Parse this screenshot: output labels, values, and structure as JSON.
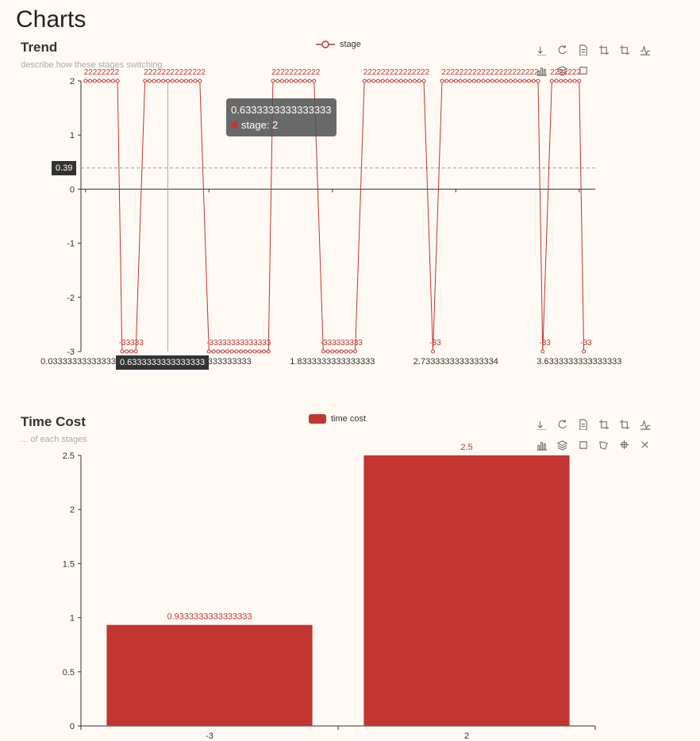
{
  "page": {
    "title": "Charts"
  },
  "colors": {
    "accent": "#c23531",
    "background": "#fff9f4"
  },
  "toolbox_icons": [
    "download-icon",
    "refresh-icon",
    "data-view-icon",
    "zoom-icon",
    "zoom-reset-icon",
    "line-chart-icon",
    "bar-chart-icon",
    "stack-icon",
    "rect-select-icon",
    "polygon-select-icon",
    "keep-select-icon",
    "clear-select-icon"
  ],
  "tooltip": {
    "title": "0.6333333333333333",
    "series_line": "stage: 2",
    "y_pointer": "0.39",
    "x_pointer": "0.6333333333333333"
  },
  "chart_data": [
    {
      "type": "line",
      "title": "Trend",
      "subtitle": "describe how these stages switching",
      "legend": [
        "stage"
      ],
      "legend_position": "top-center",
      "ylim": [
        -3,
        2
      ],
      "y_ticks": [
        "2",
        "1",
        "0",
        "-1",
        "-2",
        "-3"
      ],
      "x_tick_labels": [
        "0.03333333333333333",
        "0.9333333333333333",
        "1.8333333333333333",
        "2.7333333333333334",
        "3.6333333333333333"
      ],
      "series": [
        {
          "name": "stage",
          "segments": [
            {
              "x": [
                0.0333,
                0.2667
              ],
              "y": 2
            },
            {
              "x": [
                0.3,
                0.4333
              ],
              "y": -3
            },
            {
              "x": [
                0.4667,
                0.9
              ],
              "y": 2
            },
            {
              "x": [
                0.9333,
                1.3667
              ],
              "y": -3
            },
            {
              "x": [
                1.4,
                1.7333
              ],
              "y": 2
            },
            {
              "x": [
                1.7667,
                2.0333
              ],
              "y": -3
            },
            {
              "x": [
                2.0667,
                2.5333
              ],
              "y": 2
            },
            {
              "x": [
                2.5667,
                2.6
              ],
              "y": -3
            },
            {
              "x": [
                2.6333,
                3.3333
              ],
              "y": 2
            },
            {
              "x": [
                3.3667,
                3.4
              ],
              "y": -3
            },
            {
              "x": [
                3.4333,
                3.6333
              ],
              "y": 2
            },
            {
              "x": [
                3.6667,
                3.7
              ],
              "y": -3
            }
          ]
        }
      ]
    },
    {
      "type": "bar",
      "title": "Time Cost",
      "subtitle": "... of each stages",
      "legend": [
        "time cost"
      ],
      "legend_position": "top-center",
      "categories": [
        "-3",
        "2"
      ],
      "values": [
        0.9333333333333333,
        2.5
      ],
      "value_labels": [
        "0.9333333333333333",
        "2.5"
      ],
      "ylim": [
        0,
        2.5
      ],
      "y_ticks": [
        "2.5",
        "2",
        "1.5",
        "1",
        "0.5",
        "0"
      ]
    }
  ]
}
